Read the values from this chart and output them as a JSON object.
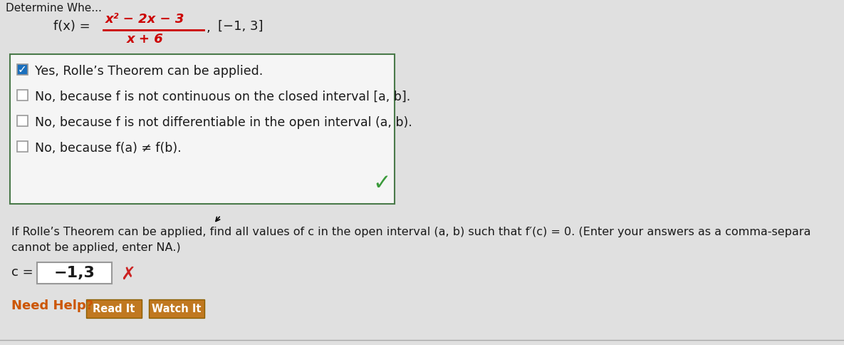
{
  "background_color": "#c8c8c8",
  "white_area_color": "#e8e8e8",
  "function_label": "f(x) =",
  "numerator": "x² − 2x − 3",
  "denominator": "x + 6",
  "interval": "[−1, 3]",
  "fraction_color": "#cc0000",
  "options": [
    {
      "text": "Yes, Rolle’s Theorem can be applied.",
      "checked": true
    },
    {
      "text": "No, because f is not continuous on the closed interval [a, b].",
      "checked": false
    },
    {
      "text": "No, because f is not differentiable in the open interval (a, b).",
      "checked": false
    },
    {
      "text": "No, because f(a) ≠ f(b).",
      "checked": false
    }
  ],
  "checkbox_color_checked": "#1a6fbd",
  "checkbox_color_unchecked": "#ffffff",
  "checkbox_border": "#999999",
  "box_border_color": "#4a7a4a",
  "box_face_color": "#f5f5f5",
  "green_check_color": "#3a9a3a",
  "question_text1": "If Rolle’s Theorem can be applied, find all values of c in the open interval (a, b) such that f′(c) = 0. (Enter your answers as a comma-separa",
  "question_text2": "cannot be applied, enter NA.)",
  "c_label": "c =",
  "c_value": "−1,3",
  "red_x_color": "#cc2222",
  "need_help_color": "#cc5500",
  "need_help_text": "Need Help?",
  "btn1_text": "Read It",
  "btn2_text": "Watch It",
  "btn_color": "#c07820",
  "btn_text_color": "#ffffff",
  "input_border": "#999999",
  "font_color_main": "#1a1a1a",
  "bottom_line_color": "#aaaaaa"
}
